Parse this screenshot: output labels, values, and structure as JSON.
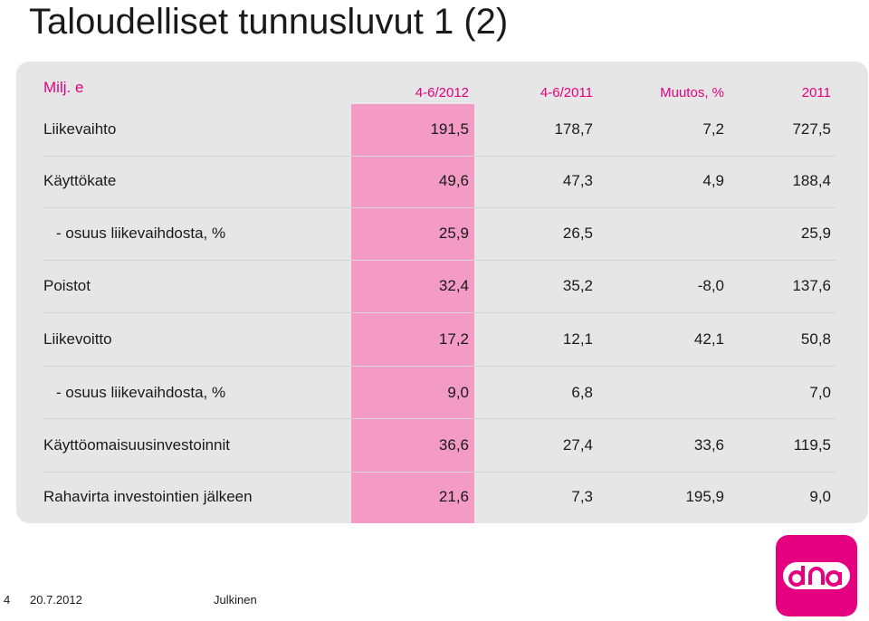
{
  "title": "Taloudelliset tunnusluvut 1 (2)",
  "table": {
    "unit_label": "Milj. e",
    "columns": [
      "4-6/2012",
      "4-6/2011",
      "Muutos, %",
      "2011"
    ],
    "rows": [
      {
        "label": "Liikevaihto",
        "values": [
          "191,5",
          "178,7",
          "7,2",
          "727,5"
        ],
        "indent": false
      },
      {
        "label": "Käyttökate",
        "values": [
          "49,6",
          "47,3",
          "4,9",
          "188,4"
        ],
        "indent": false
      },
      {
        "label": "- osuus liikevaihdosta, %",
        "values": [
          "25,9",
          "26,5",
          "",
          "25,9"
        ],
        "indent": true
      },
      {
        "label": "Poistot",
        "values": [
          "32,4",
          "35,2",
          "-8,0",
          "137,6"
        ],
        "indent": false
      },
      {
        "label": "Liikevoitto",
        "values": [
          "17,2",
          "12,1",
          "42,1",
          "50,8"
        ],
        "indent": false
      },
      {
        "label": "- osuus liikevaihdosta, %",
        "values": [
          "9,0",
          "6,8",
          "",
          "7,0"
        ],
        "indent": true
      },
      {
        "label": "Käyttöomaisuusinvestoinnit",
        "values": [
          "36,6",
          "27,4",
          "33,6",
          "119,5"
        ],
        "indent": false
      },
      {
        "label": "Rahavirta investointien jälkeen",
        "values": [
          "21,6",
          "7,3",
          "195,9",
          "9,0"
        ],
        "indent": false
      }
    ]
  },
  "footer": {
    "page_number": "4",
    "date": "20.7.2012",
    "classification": "Julkinen"
  },
  "colors": {
    "accent": "#e4007f",
    "highlight_column": "#f39ac5",
    "panel": "#e6e6e6"
  },
  "logo_icon": "dna-logo"
}
